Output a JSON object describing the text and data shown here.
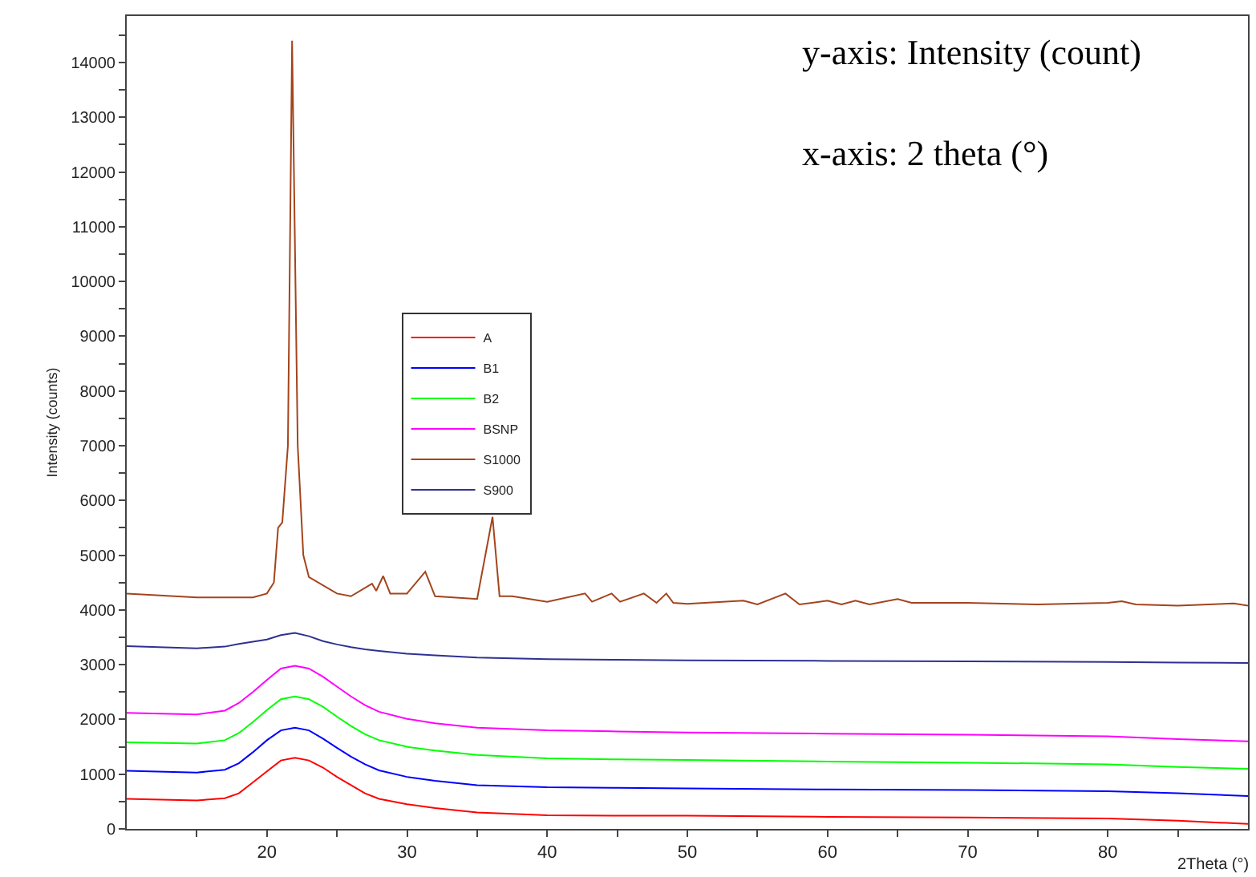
{
  "chart_data": {
    "type": "line",
    "xlabel": "2Theta (°)",
    "ylabel": "Intensity (counts)",
    "annotations": [
      "y-axis: Intensity (count)",
      "x-axis: 2 theta (°)"
    ],
    "xlim": [
      10,
      90
    ],
    "xticks": [
      {
        "value": 15,
        "label": null
      },
      20,
      {
        "value": 25,
        "label": null
      },
      30,
      {
        "value": 35,
        "label": null
      },
      40,
      {
        "value": 45,
        "label": null
      },
      50,
      {
        "value": 55,
        "label": null
      },
      60,
      {
        "value": 65,
        "label": null
      },
      70,
      {
        "value": 75,
        "label": null
      },
      80,
      {
        "value": 85,
        "label": null
      }
    ],
    "ylim": [
      0,
      14850
    ],
    "yticks": [
      0,
      {
        "value": 500,
        "label": null
      },
      1000,
      {
        "value": 1500,
        "label": null
      },
      2000,
      {
        "value": 2500,
        "label": null
      },
      3000,
      {
        "value": 3500,
        "label": null
      },
      4000,
      {
        "value": 4500,
        "label": null
      },
      5000,
      {
        "value": 5500,
        "label": null
      },
      6000,
      {
        "value": 6500,
        "label": null
      },
      7000,
      {
        "value": 7500,
        "label": null
      },
      8000,
      {
        "value": 8500,
        "label": null
      },
      9000,
      {
        "value": 9500,
        "label": null
      },
      10000,
      {
        "value": 10500,
        "label": null
      },
      11000,
      {
        "value": 11500,
        "label": null
      },
      12000,
      {
        "value": 12500,
        "label": null
      },
      13000,
      {
        "value": 13500,
        "label": null
      },
      14000,
      {
        "value": 14500,
        "label": null
      }
    ],
    "grid": false,
    "legend": "left",
    "marker": "none",
    "line_style": "solid",
    "x": [
      10,
      15,
      17,
      18,
      19,
      20,
      21,
      22,
      23,
      24,
      25,
      26,
      27,
      28,
      30,
      32,
      35,
      40,
      45,
      50,
      60,
      70,
      80,
      85,
      90
    ],
    "series": [
      {
        "name": "A",
        "color": "#ff0000",
        "values": [
          550,
          520,
          560,
          650,
          850,
          1050,
          1250,
          1300,
          1250,
          1120,
          950,
          800,
          650,
          550,
          450,
          380,
          300,
          250,
          240,
          240,
          220,
          210,
          190,
          150,
          90
        ]
      },
      {
        "name": "B1",
        "color": "#0000ff",
        "values": [
          1060,
          1030,
          1080,
          1200,
          1400,
          1620,
          1800,
          1850,
          1800,
          1650,
          1480,
          1320,
          1180,
          1070,
          950,
          880,
          800,
          760,
          750,
          740,
          720,
          710,
          690,
          650,
          600
        ]
      },
      {
        "name": "B2",
        "color": "#00ff00",
        "values": [
          1580,
          1560,
          1620,
          1750,
          1950,
          2170,
          2370,
          2420,
          2370,
          2230,
          2050,
          1880,
          1730,
          1620,
          1500,
          1430,
          1350,
          1290,
          1270,
          1260,
          1230,
          1210,
          1180,
          1130,
          1100
        ]
      },
      {
        "name": "BSNP",
        "color": "#ff00ff",
        "values": [
          2120,
          2090,
          2160,
          2300,
          2500,
          2720,
          2930,
          2980,
          2930,
          2780,
          2600,
          2420,
          2260,
          2140,
          2010,
          1930,
          1850,
          1800,
          1780,
          1760,
          1740,
          1720,
          1690,
          1640,
          1600
        ]
      },
      {
        "name": "S1000",
        "color": "#a4441c",
        "x": [
          10,
          15,
          19,
          20,
          20.5,
          20.8,
          21.1,
          21.5,
          21.8,
          22.2,
          22.6,
          23,
          25,
          26,
          27.5,
          27.8,
          28.3,
          28.8,
          30,
          31.3,
          32,
          35,
          36.1,
          36.6,
          37.5,
          40,
          42.7,
          43.2,
          44.6,
          45.2,
          46.9,
          47.8,
          48.5,
          49,
          50,
          54,
          55,
          57,
          58,
          60,
          61,
          62,
          63,
          65,
          66,
          70,
          75,
          80,
          81,
          82,
          85,
          89,
          90
        ],
        "values": [
          4300,
          4230,
          4230,
          4300,
          4500,
          5500,
          5600,
          7000,
          14400,
          7000,
          5000,
          4600,
          4300,
          4250,
          4480,
          4350,
          4620,
          4300,
          4300,
          4700,
          4250,
          4200,
          5700,
          4250,
          4250,
          4150,
          4300,
          4150,
          4300,
          4150,
          4300,
          4130,
          4300,
          4130,
          4110,
          4170,
          4100,
          4300,
          4100,
          4170,
          4100,
          4170,
          4100,
          4200,
          4130,
          4130,
          4100,
          4130,
          4160,
          4100,
          4080,
          4120,
          4080
        ]
      },
      {
        "name": "S900",
        "color": "#2e3192",
        "values": [
          3340,
          3300,
          3330,
          3380,
          3420,
          3460,
          3540,
          3580,
          3520,
          3430,
          3370,
          3320,
          3280,
          3250,
          3200,
          3170,
          3130,
          3100,
          3090,
          3080,
          3070,
          3060,
          3050,
          3040,
          3030
        ]
      }
    ]
  }
}
